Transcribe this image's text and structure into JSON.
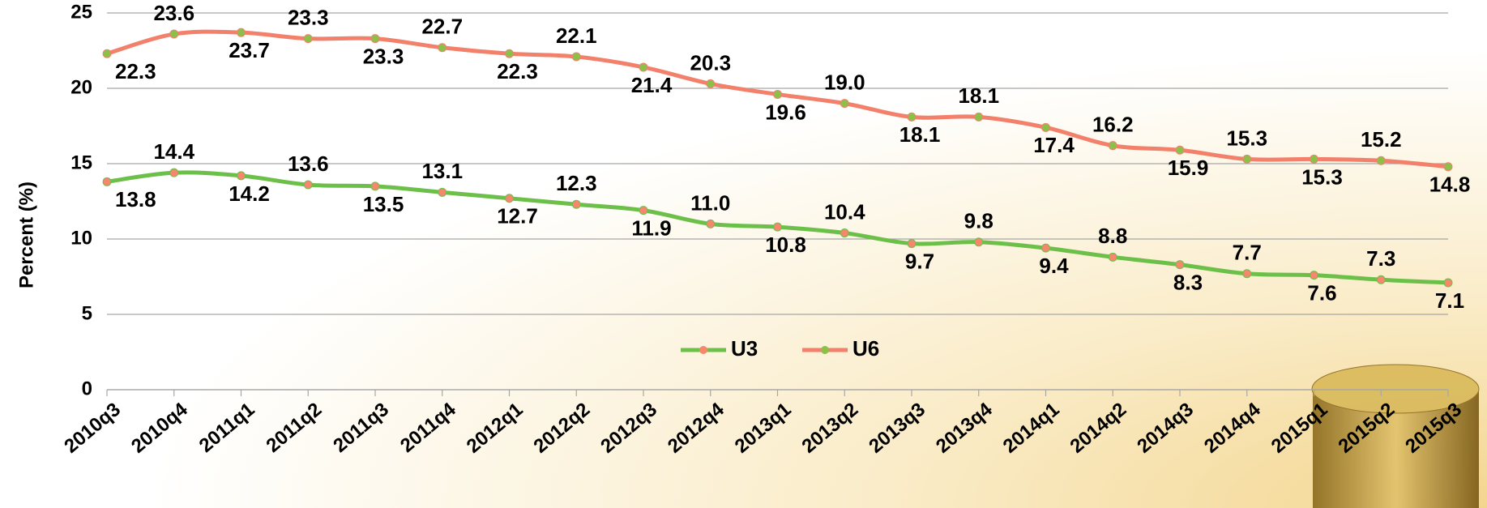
{
  "chart_data": {
    "type": "line",
    "ylabel": "Percent (%)",
    "categories": [
      "2010q3",
      "2010q4",
      "2011q1",
      "2011q2",
      "2011q3",
      "2011q4",
      "2012q1",
      "2012q2",
      "2012q3",
      "2012q4",
      "2013q1",
      "2013q2",
      "2013q3",
      "2013q4",
      "2014q1",
      "2014q2",
      "2014q3",
      "2014q4",
      "2015q1",
      "2015q2",
      "2015q3"
    ],
    "series": [
      {
        "name": "U3",
        "color": "#6cc04a",
        "marker_color": "#f4876c",
        "values": [
          13.8,
          14.4,
          14.2,
          13.6,
          13.5,
          13.1,
          12.7,
          12.3,
          11.9,
          11.0,
          10.8,
          10.4,
          9.7,
          9.8,
          9.4,
          8.8,
          8.3,
          7.7,
          7.6,
          7.3,
          7.1
        ],
        "value_labels": [
          "13.8",
          "14.4",
          "14.2",
          "13.6",
          "13.5",
          "13.1",
          "12.7",
          "12.3",
          "11.9",
          "11.0",
          "10.8",
          "10.4",
          "9.7",
          "9.8",
          "9.4",
          "8.8",
          "8.3",
          "7.7",
          "7.6",
          "7.3",
          "7.1"
        ]
      },
      {
        "name": "U6",
        "color": "#f2806a",
        "marker_color": "#8cc04a",
        "values": [
          22.3,
          23.6,
          23.7,
          23.3,
          23.3,
          22.7,
          22.3,
          22.1,
          21.4,
          20.3,
          19.6,
          19.0,
          18.1,
          18.1,
          17.4,
          16.2,
          15.9,
          15.3,
          15.3,
          15.2,
          14.8
        ],
        "value_labels": [
          "22.3",
          "23.6",
          "23.7",
          "23.3",
          "23.3",
          "22.7",
          "22.3",
          "22.1",
          "21.4",
          "20.3",
          "19.6",
          "19.0",
          "18.1",
          "18.1",
          "17.4",
          "16.2",
          "15.9",
          "15.3",
          "15.3",
          "15.2",
          "14.8"
        ]
      }
    ],
    "ylim": [
      0,
      25
    ],
    "yticks": [
      0,
      5,
      10,
      15,
      20,
      25
    ],
    "grid": true,
    "legend": "bottom"
  }
}
